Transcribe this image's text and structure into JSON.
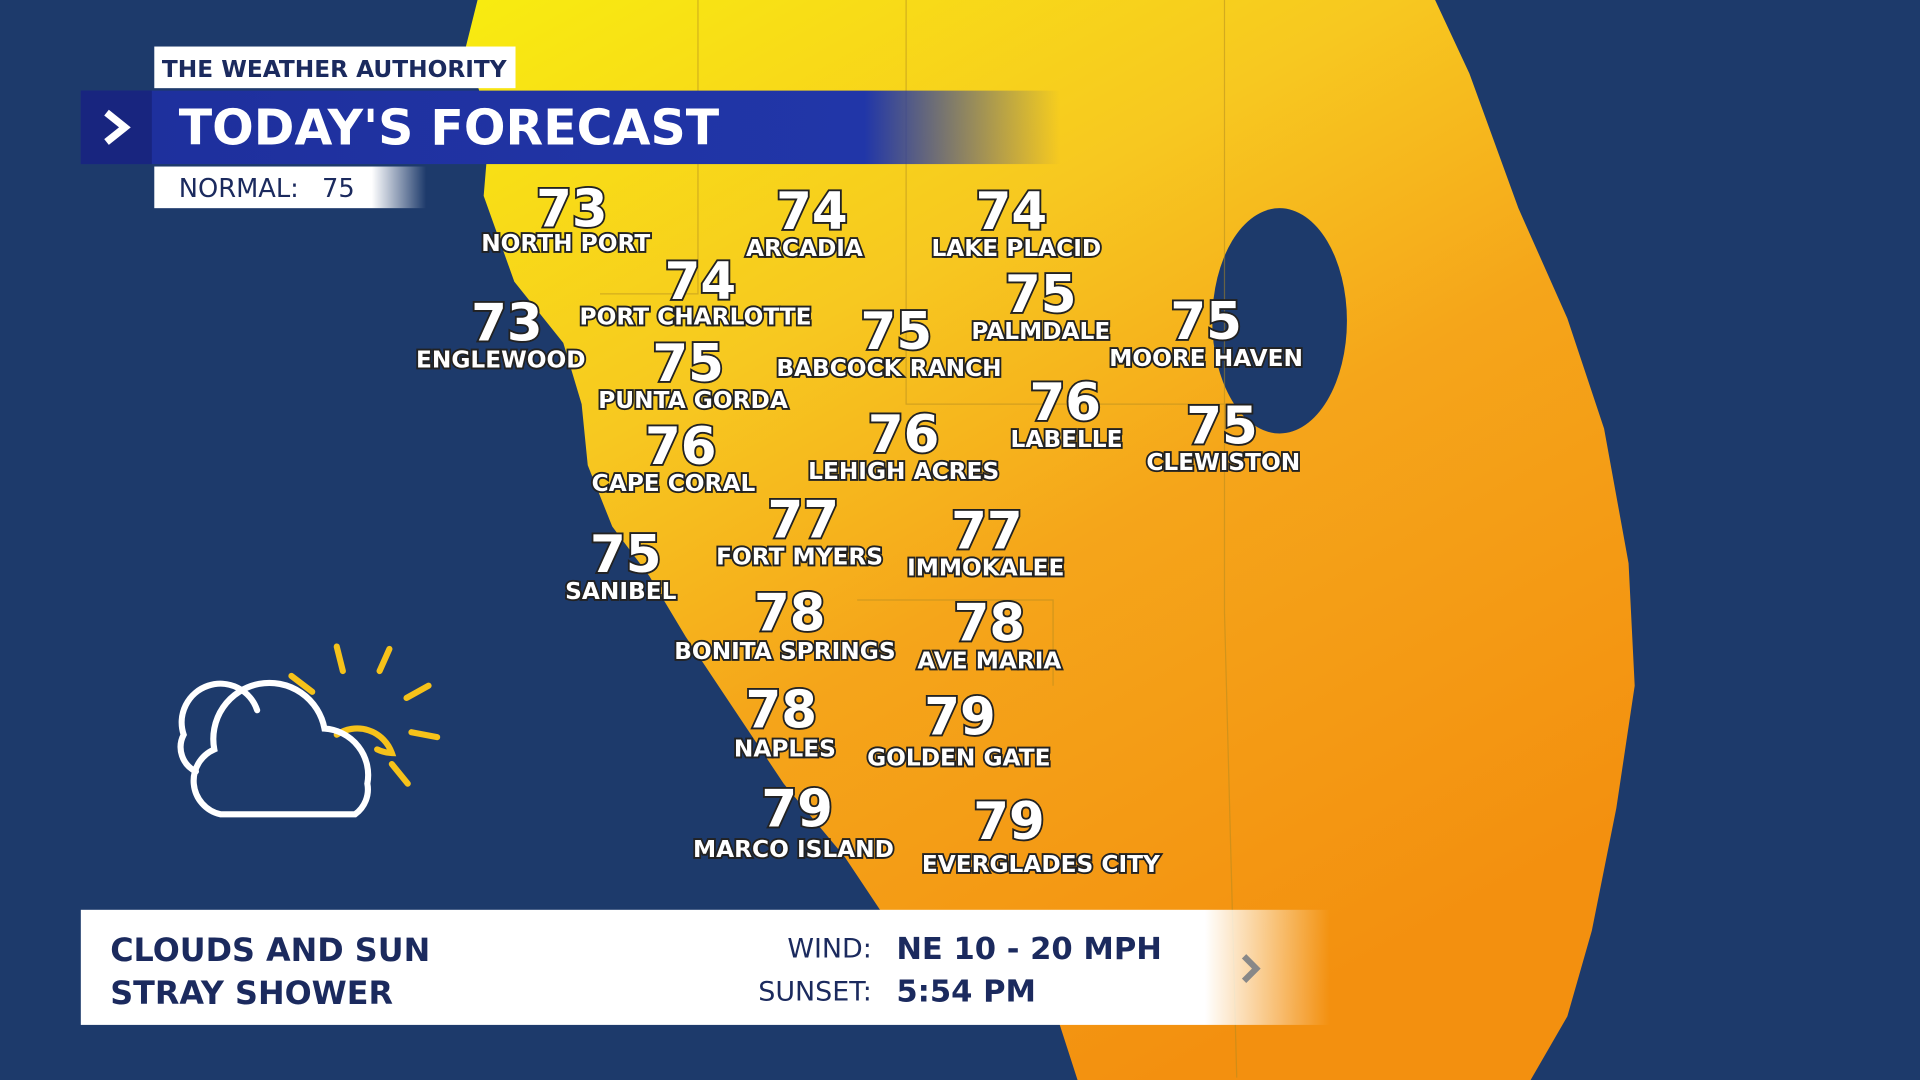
{
  "header": {
    "brand": "THE WEATHER AUTHORITY",
    "title": "TODAY'S FORECAST",
    "normal_label": "NORMAL:",
    "normal_value": 75
  },
  "cities": [
    {
      "name": "NORTH PORT",
      "temp": 73
    },
    {
      "name": "ARCADIA",
      "temp": 74
    },
    {
      "name": "LAKE PLACID",
      "temp": 74
    },
    {
      "name": "PORT CHARLOTTE",
      "temp": 74
    },
    {
      "name": "ENGLEWOOD",
      "temp": 73
    },
    {
      "name": "PALMDALE",
      "temp": 75
    },
    {
      "name": "BABCOCK RANCH",
      "temp": 75
    },
    {
      "name": "MOORE HAVEN",
      "temp": 75
    },
    {
      "name": "PUNTA GORDA",
      "temp": 75
    },
    {
      "name": "LABELLE",
      "temp": 76
    },
    {
      "name": "CLEWISTON",
      "temp": 75
    },
    {
      "name": "CAPE CORAL",
      "temp": 76
    },
    {
      "name": "LEHIGH ACRES",
      "temp": 76
    },
    {
      "name": "FORT MYERS",
      "temp": 77
    },
    {
      "name": "IMMOKALEE",
      "temp": 77
    },
    {
      "name": "SANIBEL",
      "temp": 75
    },
    {
      "name": "BONITA SPRINGS",
      "temp": 78
    },
    {
      "name": "AVE MARIA",
      "temp": 78
    },
    {
      "name": "NAPLES",
      "temp": 78
    },
    {
      "name": "GOLDEN GATE",
      "temp": 79
    },
    {
      "name": "MARCO ISLAND",
      "temp": 79
    },
    {
      "name": "EVERGLADES CITY",
      "temp": 79
    }
  ],
  "footer": {
    "conditions": [
      "CLOUDS AND SUN",
      "STRAY SHOWER"
    ],
    "wind_label": "WIND:",
    "wind": "NE 10 - 20 MPH",
    "sunset_label": "SUNSET:",
    "sunset": "5:54 PM"
  }
}
